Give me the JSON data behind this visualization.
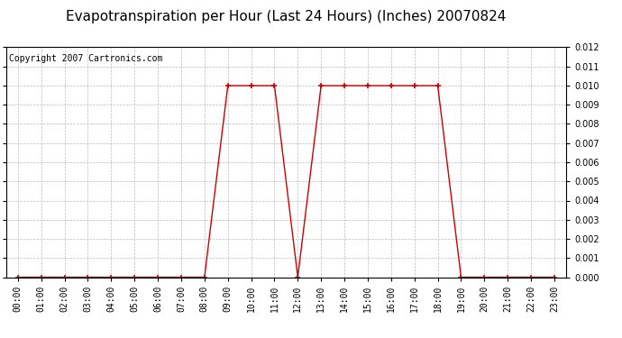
{
  "title": "Evapotranspiration per Hour (Last 24 Hours) (Inches) 20070824",
  "copyright": "Copyright 2007 Cartronics.com",
  "hours": [
    "00:00",
    "01:00",
    "02:00",
    "03:00",
    "04:00",
    "05:00",
    "06:00",
    "07:00",
    "08:00",
    "09:00",
    "10:00",
    "11:00",
    "12:00",
    "13:00",
    "14:00",
    "15:00",
    "16:00",
    "17:00",
    "18:00",
    "19:00",
    "20:00",
    "21:00",
    "22:00",
    "23:00"
  ],
  "values": [
    0.0,
    0.0,
    0.0,
    0.0,
    0.0,
    0.0,
    0.0,
    0.0,
    0.0,
    0.01,
    0.01,
    0.01,
    0.0,
    0.01,
    0.01,
    0.01,
    0.01,
    0.01,
    0.01,
    0.0,
    0.0,
    0.0,
    0.0,
    0.0
  ],
  "line_color": "#cc0000",
  "marker": "+",
  "marker_size": 5,
  "background_color": "#ffffff",
  "plot_bg_color": "#ffffff",
  "grid_color": "#bbbbbb",
  "ylim": [
    0.0,
    0.012
  ],
  "yticks": [
    0.0,
    0.001,
    0.002,
    0.003,
    0.004,
    0.005,
    0.006,
    0.007,
    0.008,
    0.009,
    0.01,
    0.011,
    0.012
  ],
  "title_fontsize": 11,
  "copyright_fontsize": 7,
  "tick_fontsize": 7
}
